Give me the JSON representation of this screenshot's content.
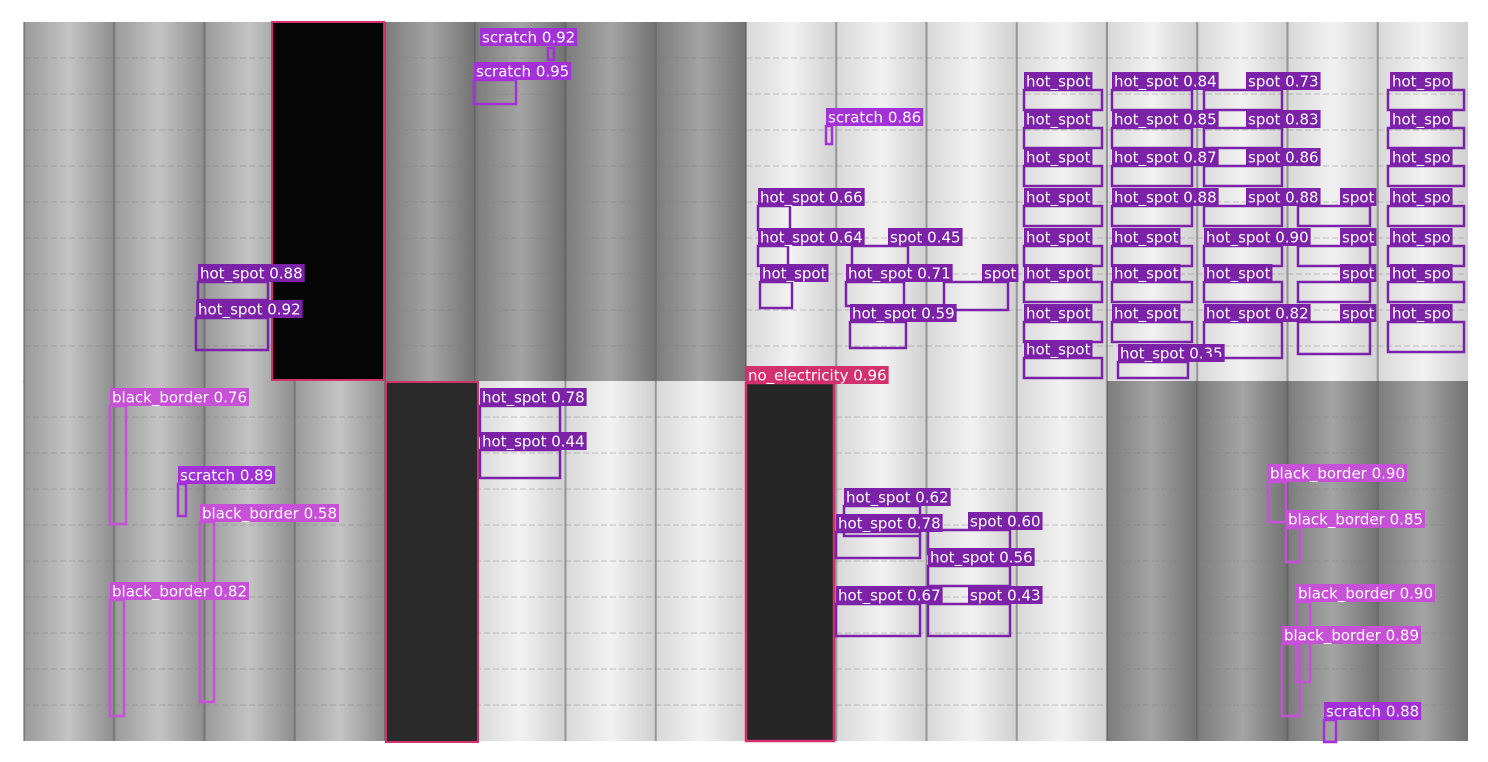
{
  "detections": [
    {
      "label": "hot_spot 0.88"
    },
    {
      "label": "hot_spot 0.92"
    },
    {
      "label": "scratch 0.92"
    },
    {
      "label": "scratch 0.95"
    },
    {
      "label": "scratch 0.86"
    },
    {
      "label": "hot_spot 0.66"
    },
    {
      "label": "hot_spot 0.64"
    },
    {
      "label": "spot 0.45"
    },
    {
      "label": "hot_spot"
    },
    {
      "label": "hot_spot 0.71"
    },
    {
      "label": "spot"
    },
    {
      "label": "hot_spot 0.59"
    },
    {
      "label": "hot_spot"
    },
    {
      "label": "hot_spot"
    },
    {
      "label": "hot_spot"
    },
    {
      "label": "hot_spot"
    },
    {
      "label": "hot_spot"
    },
    {
      "label": "hot_spot"
    },
    {
      "label": "hot_spot"
    },
    {
      "label": "hot_spot"
    },
    {
      "label": "hot_spot 0.84"
    },
    {
      "label": "hot_spot 0.85"
    },
    {
      "label": "hot_spot 0.87"
    },
    {
      "label": "hot_spot 0.88"
    },
    {
      "label": "hot_spot"
    },
    {
      "label": "hot_spot"
    },
    {
      "label": "hot_spot"
    },
    {
      "label": "hot_spot 0.35"
    },
    {
      "label": "spot 0.73"
    },
    {
      "label": "spot 0.83"
    },
    {
      "label": "spot 0.86"
    },
    {
      "label": "spot 0.88"
    },
    {
      "label": "hot_spot 0.90"
    },
    {
      "label": "hot_spot"
    },
    {
      "label": "hot_spot 0.82"
    },
    {
      "label": "spot"
    },
    {
      "label": "spot"
    },
    {
      "label": "spot"
    },
    {
      "label": "spot"
    },
    {
      "label": "hot_spo"
    },
    {
      "label": "hot_spo"
    },
    {
      "label": "hot_spo"
    },
    {
      "label": "hot_spo"
    },
    {
      "label": "hot_spo"
    },
    {
      "label": "hot_spo"
    },
    {
      "label": "hot_spo"
    },
    {
      "label": "black_border 0.76"
    },
    {
      "label": "scratch 0.89"
    },
    {
      "label": "black_border 0.58"
    },
    {
      "label": "black_border 0.82"
    },
    {
      "label": "hot_spot 0.78"
    },
    {
      "label": "hot_spot 0.44"
    },
    {
      "label": "no_electricity 0.96"
    },
    {
      "label": "hot_spot 0.62"
    },
    {
      "label": "hot_spot 0.78"
    },
    {
      "label": "spot 0.60"
    },
    {
      "label": "hot_spot 0.56"
    },
    {
      "label": "hot_spot 0.67"
    },
    {
      "label": "spot 0.43"
    },
    {
      "label": "black_border 0.90"
    },
    {
      "label": "black_border 0.85"
    },
    {
      "label": "black_border 0.90"
    },
    {
      "label": "black_border 0.89"
    },
    {
      "label": "scratch 0.88"
    }
  ]
}
